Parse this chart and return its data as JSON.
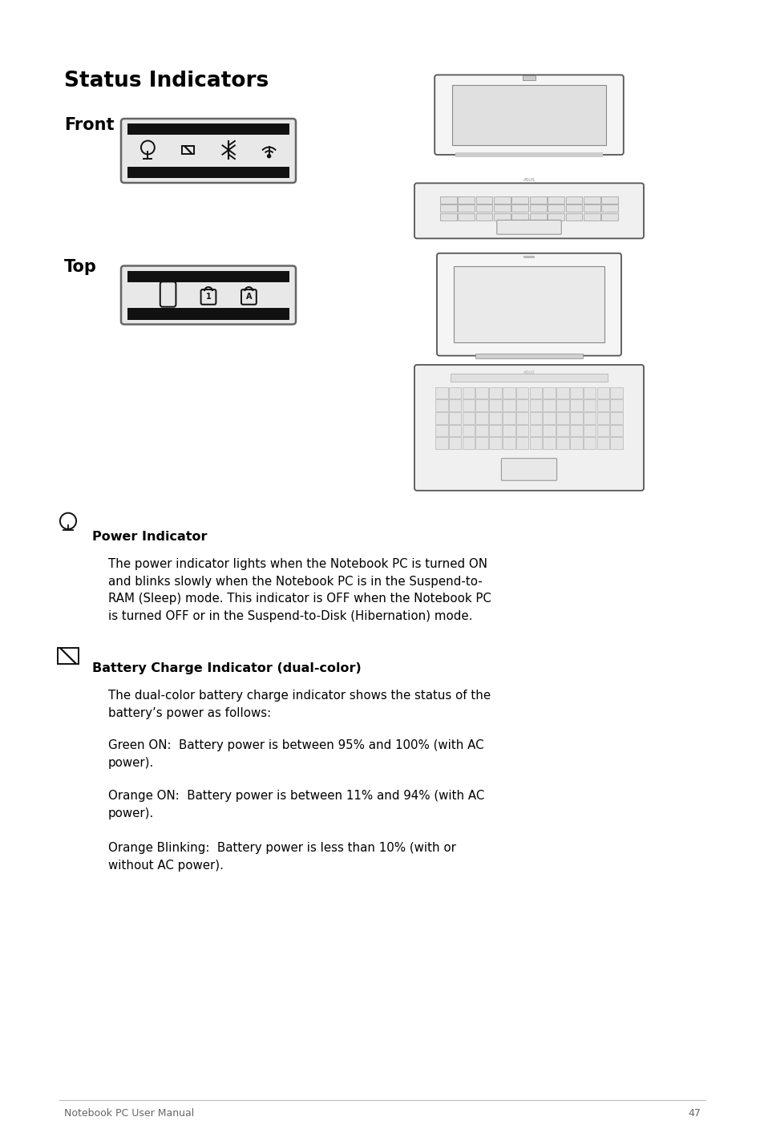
{
  "title": "Status Indicators",
  "bg_color": "#ffffff",
  "text_color": "#000000",
  "page_width": 9.54,
  "page_height": 14.18,
  "title_fontsize": 19,
  "label_fontsize": 15,
  "body_fontsize": 10.8,
  "bold_label_fontsize": 11.5,
  "footer_text": "Notebook PC User Manual",
  "footer_page": "47",
  "section_title": "Status Indicators",
  "front_label": "Front",
  "top_label": "Top",
  "power_indicator_title": "Power Indicator",
  "power_indicator_body": "The power indicator lights when the Notebook PC is turned ON\nand blinks slowly when the Notebook PC is in the Suspend-to-\nRAM (Sleep) mode. This indicator is OFF when the Notebook PC\nis turned OFF or in the Suspend-to-Disk (Hibernation) mode.",
  "battery_indicator_title": "Battery Charge Indicator (dual-color)",
  "battery_body1": "The dual-color battery charge indicator shows the status of the\nbattery’s power as follows:",
  "battery_body2": "Green ON:  Battery power is between 95% and 100% (with AC\npower).",
  "battery_body3": "Orange ON:  Battery power is between 11% and 94% (with AC\npower).",
  "battery_body4": "Orange Blinking:  Battery power is less than 10% (with or\nwithout AC power)."
}
